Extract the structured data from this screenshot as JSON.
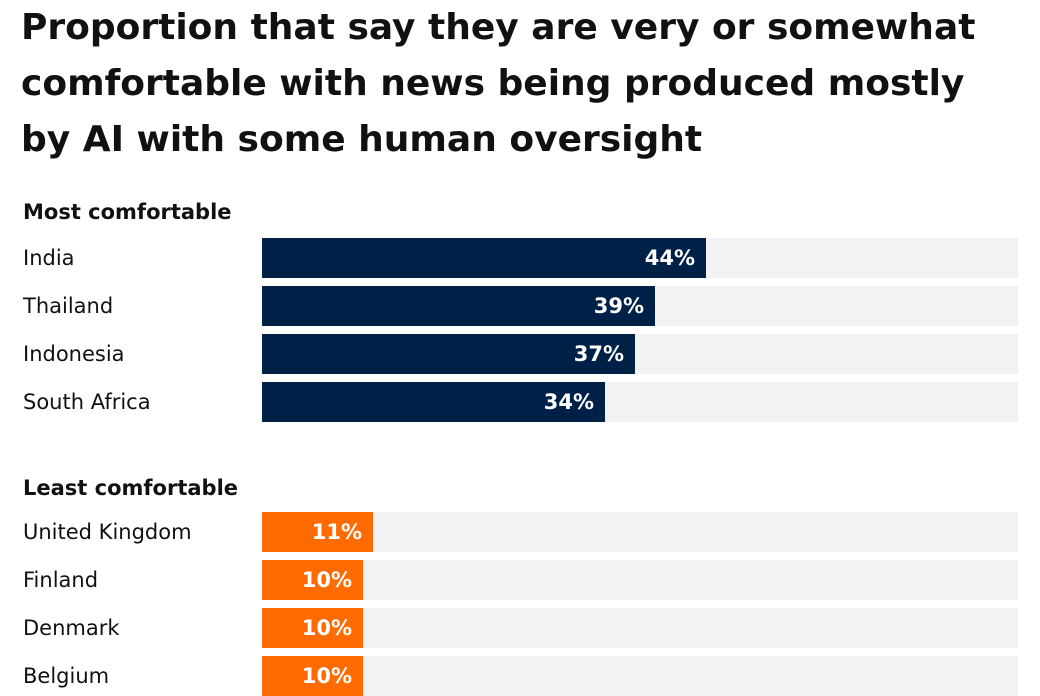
{
  "title": "Proportion that say they are very or somewhat comfortable with news being produced mostly by AI with some human oversight",
  "colors": {
    "most": "#002147",
    "least": "#ff6b00",
    "track": "#f2f2f2"
  },
  "chart_data": {
    "type": "bar",
    "orientation": "horizontal",
    "title": "Proportion that say they are very or somewhat comfortable with news being produced mostly by AI with some human oversight",
    "value_unit": "%",
    "xlim": [
      0,
      100
    ],
    "groups": [
      {
        "heading": "Most comfortable",
        "color_key": "most",
        "categories": [
          "India",
          "Thailand",
          "Indonesia",
          "South Africa"
        ],
        "values": [
          44,
          39,
          37,
          34
        ]
      },
      {
        "heading": "Least comfortable",
        "color_key": "least",
        "categories": [
          "United Kingdom",
          "Finland",
          "Denmark",
          "Belgium"
        ],
        "values": [
          11,
          10,
          10,
          10
        ]
      }
    ]
  }
}
